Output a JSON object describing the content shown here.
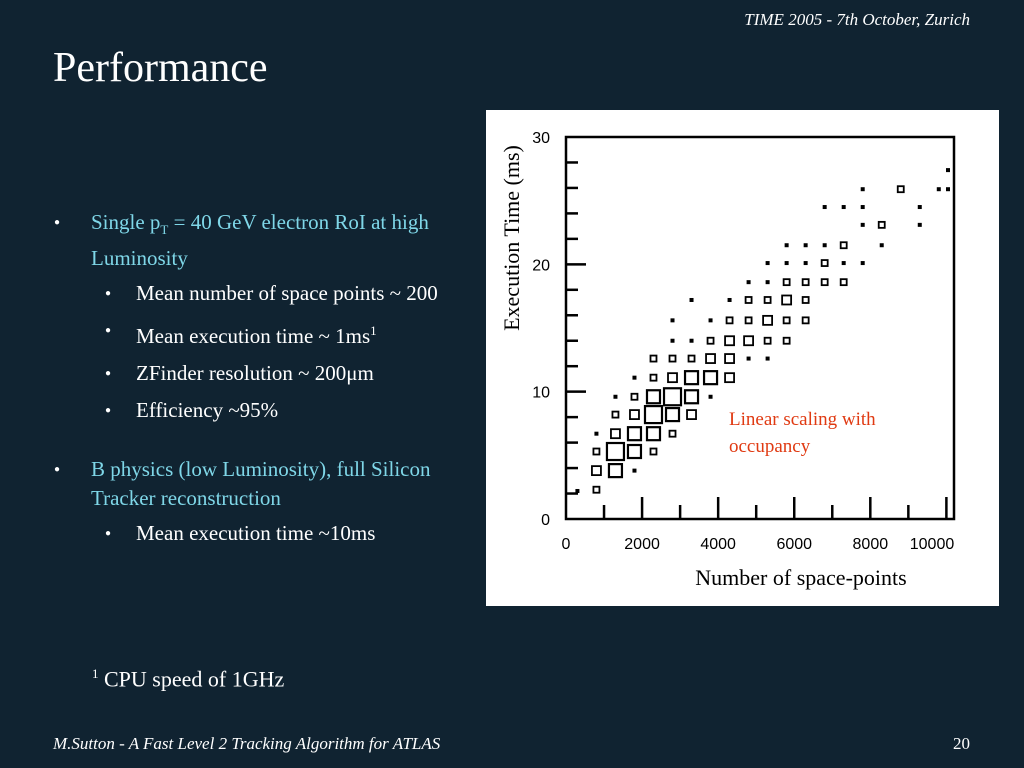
{
  "header": {
    "conference": "TIME 2005 - 7th October,  Zurich"
  },
  "slide": {
    "title": "Performance"
  },
  "bullets": {
    "b1": {
      "pre": "Single p",
      "sub": "T",
      "post": " = 40 GeV electron RoI at high Luminosity",
      "items": [
        {
          "text": "Mean number of space points ~ 200"
        },
        {
          "pre": "Mean execution time ~ 1ms",
          "sup": "1"
        },
        {
          "pre": "ZFinder resolution ~ 200",
          "mu": "μ",
          "post": "m"
        },
        {
          "text": "Efficiency ~95%"
        }
      ]
    },
    "b2": {
      "text": "B physics (low Luminosity),  full Silicon Tracker reconstruction",
      "items": [
        {
          "text": "Mean execution time ~10ms"
        }
      ]
    }
  },
  "footnote": {
    "mark": "1",
    "text": " CPU speed of 1GHz"
  },
  "footer": {
    "author": "M.Sutton - A Fast Level 2 Tracking Algorithm for ATLAS",
    "page": "20"
  },
  "chart_data": {
    "type": "scatter",
    "style": "box-histogram (marker size ∝ entries)",
    "xlabel": "Number of space-points",
    "ylabel": "Execution Time (ms)",
    "xlim": [
      0,
      10200
    ],
    "ylim": [
      0,
      30
    ],
    "x_ticks": [
      0,
      2000,
      4000,
      6000,
      8000,
      10000
    ],
    "x_tick_labels": [
      "0",
      "2000",
      "4000",
      "6000",
      "8000",
      "10000"
    ],
    "y_ticks": [
      0,
      10,
      20,
      30
    ],
    "y_tick_labels": [
      "0",
      "10",
      "20",
      "30"
    ],
    "grid": false,
    "annotation": {
      "lines": [
        "Linear scaling with",
        "occupancy"
      ],
      "color": "#e03a12"
    },
    "points": [
      {
        "x": 300,
        "y": 2.2,
        "size": 1
      },
      {
        "x": 800,
        "y": 2.3,
        "size": 2
      },
      {
        "x": 800,
        "y": 3.8,
        "size": 3
      },
      {
        "x": 800,
        "y": 5.3,
        "size": 2
      },
      {
        "x": 800,
        "y": 6.7,
        "size": 1
      },
      {
        "x": 1300,
        "y": 3.8,
        "size": 4
      },
      {
        "x": 1300,
        "y": 5.3,
        "size": 5
      },
      {
        "x": 1300,
        "y": 6.7,
        "size": 3
      },
      {
        "x": 1300,
        "y": 8.2,
        "size": 2
      },
      {
        "x": 1300,
        "y": 9.6,
        "size": 1
      },
      {
        "x": 1800,
        "y": 3.8,
        "size": 1
      },
      {
        "x": 1800,
        "y": 5.3,
        "size": 4
      },
      {
        "x": 1800,
        "y": 6.7,
        "size": 4
      },
      {
        "x": 1800,
        "y": 8.2,
        "size": 3
      },
      {
        "x": 1800,
        "y": 9.6,
        "size": 2
      },
      {
        "x": 1800,
        "y": 11.1,
        "size": 1
      },
      {
        "x": 2300,
        "y": 5.3,
        "size": 2
      },
      {
        "x": 2300,
        "y": 6.7,
        "size": 4
      },
      {
        "x": 2300,
        "y": 8.2,
        "size": 5
      },
      {
        "x": 2300,
        "y": 9.6,
        "size": 4
      },
      {
        "x": 2300,
        "y": 11.1,
        "size": 2
      },
      {
        "x": 2300,
        "y": 12.6,
        "size": 2
      },
      {
        "x": 2800,
        "y": 6.7,
        "size": 2
      },
      {
        "x": 2800,
        "y": 8.2,
        "size": 4
      },
      {
        "x": 2800,
        "y": 9.6,
        "size": 5
      },
      {
        "x": 2800,
        "y": 11.1,
        "size": 3
      },
      {
        "x": 2800,
        "y": 12.6,
        "size": 2
      },
      {
        "x": 2800,
        "y": 14.0,
        "size": 1
      },
      {
        "x": 2800,
        "y": 15.6,
        "size": 1
      },
      {
        "x": 3300,
        "y": 8.2,
        "size": 3
      },
      {
        "x": 3300,
        "y": 9.6,
        "size": 4
      },
      {
        "x": 3300,
        "y": 11.1,
        "size": 4
      },
      {
        "x": 3300,
        "y": 12.6,
        "size": 2
      },
      {
        "x": 3300,
        "y": 14.0,
        "size": 1
      },
      {
        "x": 3300,
        "y": 17.2,
        "size": 1
      },
      {
        "x": 3800,
        "y": 9.6,
        "size": 1
      },
      {
        "x": 3800,
        "y": 11.1,
        "size": 4
      },
      {
        "x": 3800,
        "y": 12.6,
        "size": 3
      },
      {
        "x": 3800,
        "y": 14.0,
        "size": 2
      },
      {
        "x": 3800,
        "y": 15.6,
        "size": 1
      },
      {
        "x": 4300,
        "y": 11.1,
        "size": 3
      },
      {
        "x": 4300,
        "y": 12.6,
        "size": 3
      },
      {
        "x": 4300,
        "y": 14.0,
        "size": 3
      },
      {
        "x": 4300,
        "y": 15.6,
        "size": 2
      },
      {
        "x": 4300,
        "y": 17.2,
        "size": 1
      },
      {
        "x": 4800,
        "y": 12.6,
        "size": 1
      },
      {
        "x": 4800,
        "y": 14.0,
        "size": 3
      },
      {
        "x": 4800,
        "y": 15.6,
        "size": 2
      },
      {
        "x": 4800,
        "y": 17.2,
        "size": 2
      },
      {
        "x": 4800,
        "y": 18.6,
        "size": 1
      },
      {
        "x": 5300,
        "y": 12.6,
        "size": 1
      },
      {
        "x": 5300,
        "y": 14.0,
        "size": 2
      },
      {
        "x": 5300,
        "y": 15.6,
        "size": 3
      },
      {
        "x": 5300,
        "y": 17.2,
        "size": 2
      },
      {
        "x": 5300,
        "y": 18.6,
        "size": 1
      },
      {
        "x": 5300,
        "y": 20.1,
        "size": 1
      },
      {
        "x": 5800,
        "y": 14.0,
        "size": 2
      },
      {
        "x": 5800,
        "y": 15.6,
        "size": 2
      },
      {
        "x": 5800,
        "y": 17.2,
        "size": 3
      },
      {
        "x": 5800,
        "y": 18.6,
        "size": 2
      },
      {
        "x": 5800,
        "y": 20.1,
        "size": 1
      },
      {
        "x": 5800,
        "y": 21.5,
        "size": 1
      },
      {
        "x": 6300,
        "y": 15.6,
        "size": 2
      },
      {
        "x": 6300,
        "y": 17.2,
        "size": 2
      },
      {
        "x": 6300,
        "y": 18.6,
        "size": 2
      },
      {
        "x": 6300,
        "y": 20.1,
        "size": 1
      },
      {
        "x": 6300,
        "y": 21.5,
        "size": 1
      },
      {
        "x": 6800,
        "y": 18.6,
        "size": 2
      },
      {
        "x": 6800,
        "y": 20.1,
        "size": 2
      },
      {
        "x": 6800,
        "y": 21.5,
        "size": 1
      },
      {
        "x": 6800,
        "y": 24.5,
        "size": 1
      },
      {
        "x": 7300,
        "y": 18.6,
        "size": 2
      },
      {
        "x": 7300,
        "y": 20.1,
        "size": 1
      },
      {
        "x": 7300,
        "y": 21.5,
        "size": 2
      },
      {
        "x": 7300,
        "y": 24.5,
        "size": 1
      },
      {
        "x": 7800,
        "y": 20.1,
        "size": 1
      },
      {
        "x": 7800,
        "y": 23.1,
        "size": 1
      },
      {
        "x": 7800,
        "y": 24.5,
        "size": 1
      },
      {
        "x": 7800,
        "y": 25.9,
        "size": 1
      },
      {
        "x": 8300,
        "y": 21.5,
        "size": 1
      },
      {
        "x": 8300,
        "y": 23.1,
        "size": 2
      },
      {
        "x": 8800,
        "y": 25.9,
        "size": 2
      },
      {
        "x": 9300,
        "y": 23.1,
        "size": 1
      },
      {
        "x": 9300,
        "y": 24.5,
        "size": 1
      },
      {
        "x": 9800,
        "y": 25.9,
        "size": 1
      },
      {
        "x": 10300,
        "y": 25.9,
        "size": 1
      },
      {
        "x": 10300,
        "y": 27.4,
        "size": 1
      }
    ]
  }
}
